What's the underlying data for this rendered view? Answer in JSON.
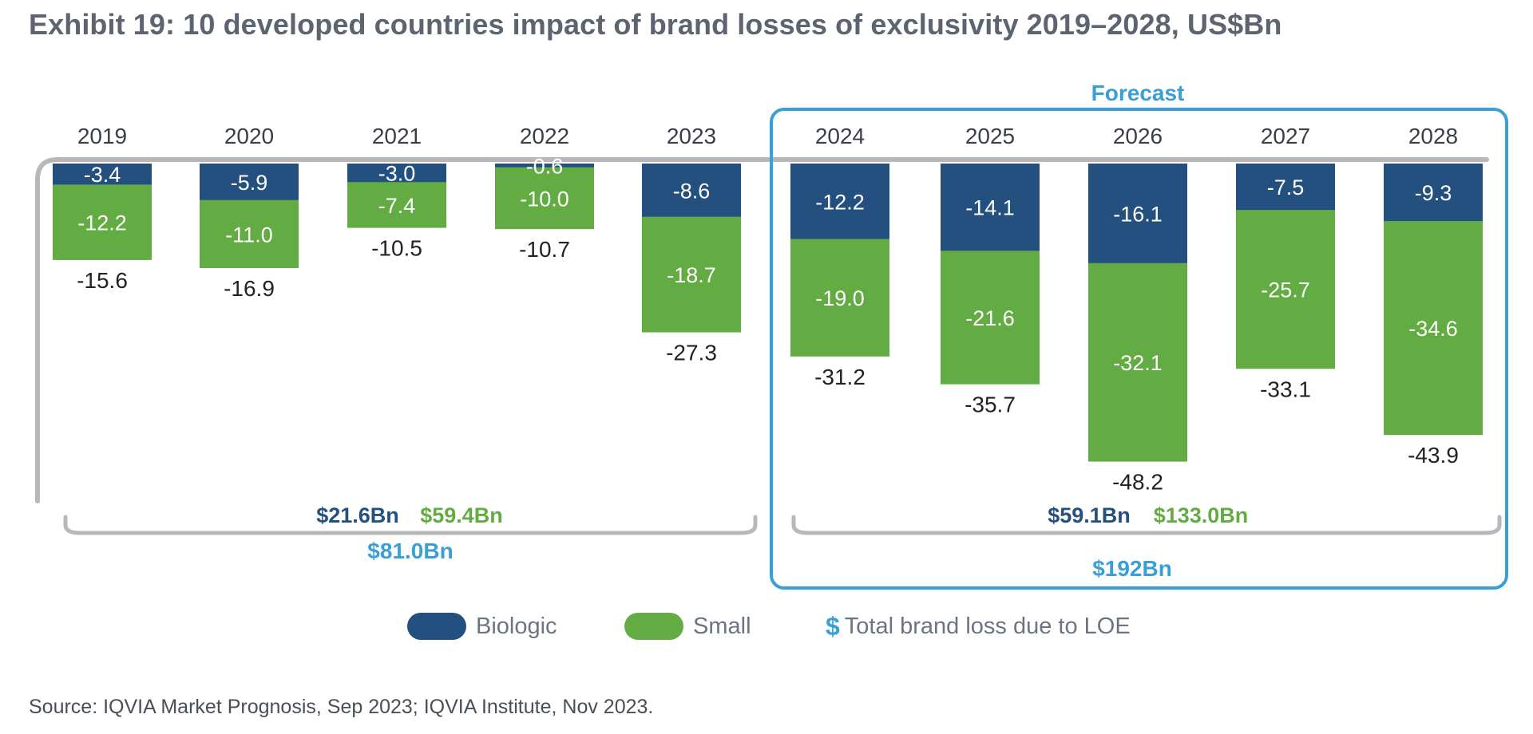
{
  "title": "Exhibit 19: 10 developed countries impact of brand losses of exclusivity 2019–2028, US$Bn",
  "colors": {
    "biologic": "#24507f",
    "small": "#62ac43",
    "total": "#3a9fd6",
    "bracket": "#b8b8bc",
    "text": "#222222"
  },
  "chart_data": {
    "type": "bar",
    "stacked": true,
    "categories": [
      "2019",
      "2020",
      "2021",
      "2022",
      "2023",
      "2024",
      "2025",
      "2026",
      "2027",
      "2028"
    ],
    "series": [
      {
        "name": "Biologic",
        "values": [
          -3.4,
          -5.9,
          -3.0,
          -0.6,
          -8.6,
          -12.2,
          -14.1,
          -16.1,
          -7.5,
          -9.3
        ]
      },
      {
        "name": "Small",
        "values": [
          -12.2,
          -11.0,
          -7.4,
          -10.0,
          -18.7,
          -19.0,
          -21.6,
          -32.1,
          -25.7,
          -34.6
        ]
      }
    ],
    "totals": [
      -15.6,
      -16.9,
      -10.5,
      -10.7,
      -27.3,
      -31.2,
      -35.7,
      -48.2,
      -33.1,
      -43.9
    ],
    "forecast_label": "Forecast",
    "forecast_start_index": 5,
    "summaries": [
      {
        "range": "2019–2023",
        "biologic": "$21.6Bn",
        "small": "$59.4Bn",
        "total": "$81.0Bn"
      },
      {
        "range": "2024–2028",
        "biologic": "$59.1Bn",
        "small": "$133.0Bn",
        "total": "$192Bn"
      }
    ],
    "legend": [
      {
        "name": "Biologic",
        "label": "Biologic"
      },
      {
        "name": "Small",
        "label": "Small"
      },
      {
        "name": "Total",
        "symbol": "$",
        "label": "Total brand loss due to LOE"
      }
    ]
  },
  "source": "Source: IQVIA Market Prognosis, Sep 2023; IQVIA Institute, Nov 2023."
}
